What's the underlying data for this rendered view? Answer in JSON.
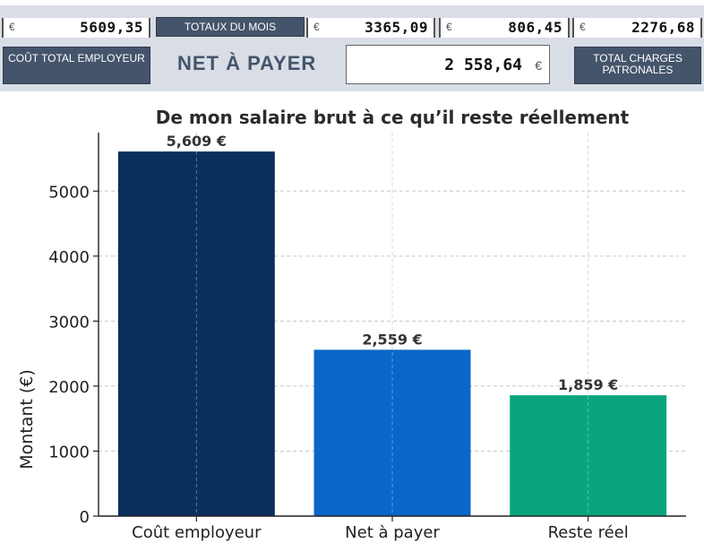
{
  "header": {
    "currency": "€",
    "totaux_label": "TOTAUX DU MOIS",
    "cout_label": "COÛT  TOTAL EMPLOYEUR",
    "net_label": "NET À PAYER",
    "charges_label": "TOTAL  CHARGES PATRONALES",
    "values": [
      "5609,35",
      "3365,09",
      "806,45",
      "2276,68"
    ],
    "net_value": "2 558,64"
  },
  "chart_data": {
    "type": "bar",
    "title": "De mon salaire brut à ce qu’il reste réellement",
    "ylabel": "Montant (€)",
    "xlabel": "",
    "categories": [
      "Coût employeur",
      "Net à payer",
      "Reste réel"
    ],
    "values": [
      5609,
      2559,
      1859
    ],
    "value_labels": [
      "5,609 €",
      "2,559 €",
      "1,859 €"
    ],
    "colors": [
      "#0a2f5e",
      "#0a66c8",
      "#0aa57f"
    ],
    "ylim": [
      0,
      5900
    ],
    "yticks": [
      0,
      1000,
      2000,
      3000,
      4000,
      5000
    ],
    "grid": true
  }
}
